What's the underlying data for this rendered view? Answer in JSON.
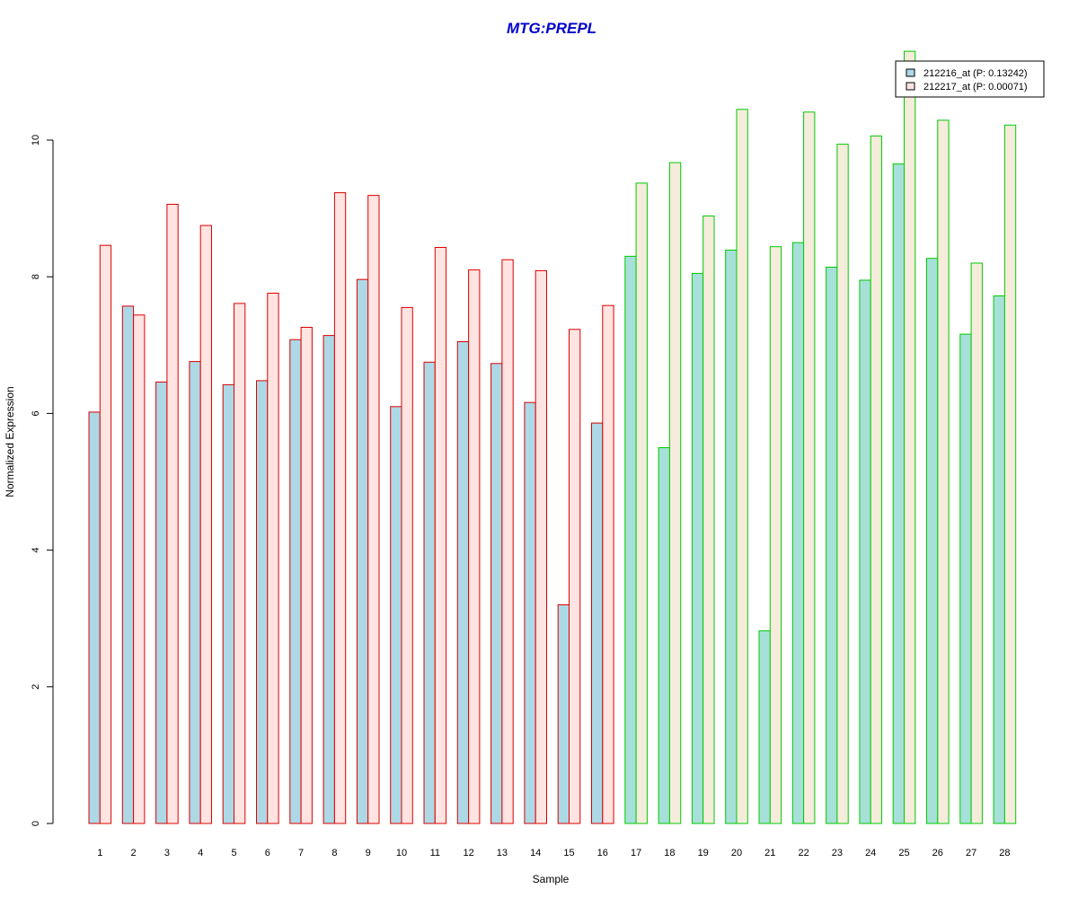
{
  "chart_data": {
    "type": "bar",
    "title": "MTG:PREPL",
    "xlabel": "Sample",
    "ylabel": "Normalized Expression",
    "ylim": [
      0,
      11.5
    ],
    "yticks": [
      0,
      2,
      4,
      6,
      8,
      10
    ],
    "categories": [
      "1",
      "2",
      "3",
      "4",
      "5",
      "6",
      "7",
      "8",
      "9",
      "10",
      "11",
      "12",
      "13",
      "14",
      "15",
      "16",
      "17",
      "18",
      "19",
      "20",
      "21",
      "22",
      "23",
      "24",
      "25",
      "26",
      "27",
      "28"
    ],
    "groups": [
      {
        "samples": [
          1,
          16
        ],
        "border_color": "#dd0000"
      },
      {
        "samples": [
          17,
          28
        ],
        "border_color": "#00cc00"
      }
    ],
    "series": [
      {
        "name": "212216_at (P: 0.13242)",
        "fill_group1": "#add8e6",
        "fill_group2": "#a6e0d8",
        "values": [
          6.02,
          7.57,
          6.46,
          6.76,
          6.42,
          6.48,
          7.08,
          7.14,
          7.96,
          6.1,
          6.75,
          7.05,
          6.73,
          6.16,
          3.2,
          5.86,
          8.3,
          5.5,
          8.05,
          8.39,
          2.82,
          8.5,
          8.14,
          7.95,
          9.65,
          8.27,
          7.16,
          7.72
        ]
      },
      {
        "name": "212217_at (P: 0.00071)",
        "fill_group1": "#ffe4e1",
        "fill_group2": "#f6ecdc",
        "values": [
          8.46,
          7.44,
          9.06,
          8.75,
          7.61,
          7.76,
          7.26,
          9.23,
          9.19,
          7.55,
          8.43,
          8.1,
          8.25,
          8.09,
          7.23,
          7.58,
          9.37,
          9.67,
          8.89,
          10.45,
          8.44,
          10.41,
          9.94,
          10.06,
          11.3,
          10.29,
          8.2,
          10.22
        ]
      }
    ],
    "legend": {
      "position": "top-right",
      "entries": [
        "212216_at (P: 0.13242)",
        "212217_at (P: 0.00071)"
      ]
    },
    "grid": false
  }
}
